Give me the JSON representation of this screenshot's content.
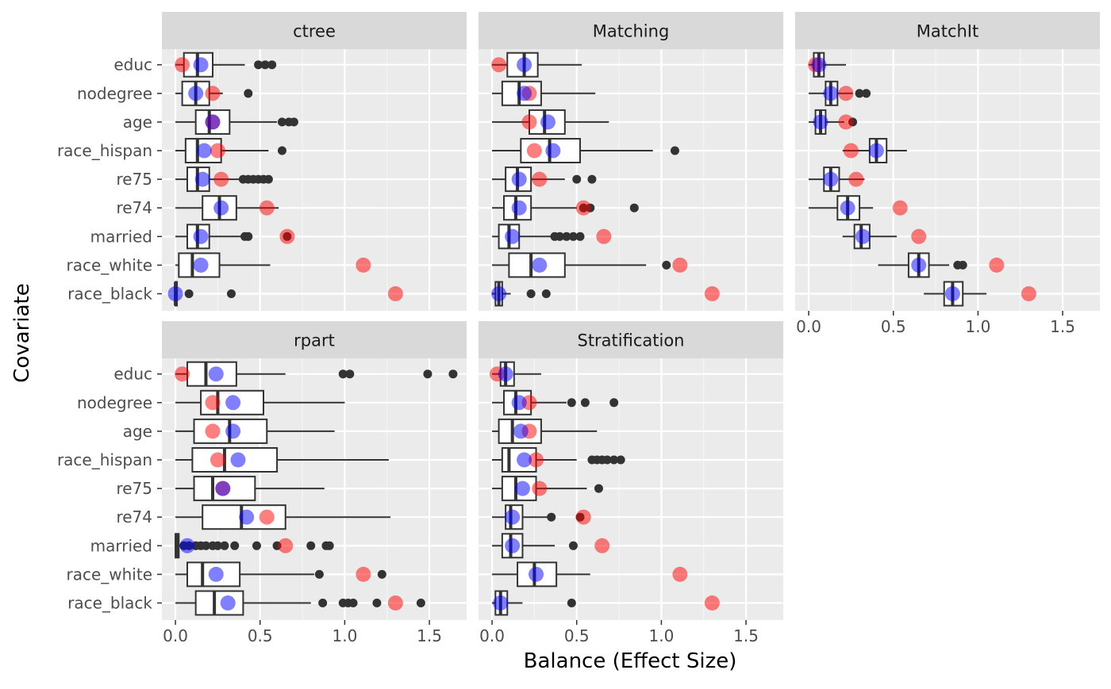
{
  "chart_data": {
    "type": "boxplot",
    "xlabel": "Balance (Effect Size)",
    "ylabel": "Covariate",
    "xlim": [
      -0.08,
      1.72
    ],
    "xticks": [
      0.0,
      0.5,
      1.0,
      1.5
    ],
    "xtick_labels": [
      "0.0",
      "0.5",
      "1.0",
      "1.5"
    ],
    "categories": [
      "educ",
      "nodegree",
      "age",
      "race_hispan",
      "re75",
      "re74",
      "married",
      "race_white",
      "race_black"
    ],
    "unadjusted_color": "#ff0000",
    "adjusted_color": "#0000ff",
    "overlap_color": "#8a1a7a",
    "panels": [
      {
        "title": "ctree",
        "rows": [
          {
            "cov": "educ",
            "q1": 0.05,
            "med": 0.13,
            "q3": 0.22,
            "wlo": 0.0,
            "whi": 0.41,
            "outliers": [
              0.49,
              0.53,
              0.57
            ],
            "unadj": 0.04,
            "adj": 0.15
          },
          {
            "cov": "nodegree",
            "q1": 0.04,
            "med": 0.12,
            "q3": 0.2,
            "wlo": 0.0,
            "whi": 0.28,
            "outliers": [
              0.43
            ],
            "unadj": 0.22,
            "adj": 0.12
          },
          {
            "cov": "age",
            "q1": 0.12,
            "med": 0.2,
            "q3": 0.32,
            "wlo": 0.0,
            "whi": 0.6,
            "outliers": [
              0.63,
              0.67,
              0.7
            ],
            "unadj": 0.22,
            "adj": 0.22
          },
          {
            "cov": "race_hispan",
            "q1": 0.06,
            "med": 0.13,
            "q3": 0.27,
            "wlo": 0.0,
            "whi": 0.55,
            "outliers": [
              0.63
            ],
            "unadj": 0.25,
            "adj": 0.17
          },
          {
            "cov": "re75",
            "q1": 0.07,
            "med": 0.13,
            "q3": 0.2,
            "wlo": 0.0,
            "whi": 0.38,
            "outliers": [
              0.4,
              0.43,
              0.46,
              0.49,
              0.52,
              0.55
            ],
            "unadj": 0.27,
            "adj": 0.16
          },
          {
            "cov": "re74",
            "q1": 0.16,
            "med": 0.26,
            "q3": 0.36,
            "wlo": 0.0,
            "whi": 0.61,
            "outliers": [],
            "unadj": 0.54,
            "adj": 0.27
          },
          {
            "cov": "married",
            "q1": 0.07,
            "med": 0.13,
            "q3": 0.2,
            "wlo": 0.0,
            "whi": 0.4,
            "outliers": [
              0.41,
              0.43,
              0.66
            ],
            "unadj": 0.66,
            "adj": 0.15
          },
          {
            "cov": "race_white",
            "q1": 0.02,
            "med": 0.1,
            "q3": 0.26,
            "wlo": 0.0,
            "whi": 0.56,
            "outliers": [],
            "unadj": 1.11,
            "adj": 0.15
          },
          {
            "cov": "race_black",
            "q1": 0.0,
            "med": 0.0,
            "q3": 0.0,
            "wlo": 0.0,
            "whi": 0.0,
            "outliers": [
              0.08,
              0.33
            ],
            "unadj": 1.3,
            "adj": 0.0
          }
        ]
      },
      {
        "title": "Matching",
        "rows": [
          {
            "cov": "educ",
            "q1": 0.09,
            "med": 0.19,
            "q3": 0.27,
            "wlo": 0.0,
            "whi": 0.53,
            "outliers": [],
            "unadj": 0.04,
            "adj": 0.19
          },
          {
            "cov": "nodegree",
            "q1": 0.06,
            "med": 0.16,
            "q3": 0.29,
            "wlo": 0.0,
            "whi": 0.61,
            "outliers": [],
            "unadj": 0.22,
            "adj": 0.19
          },
          {
            "cov": "age",
            "q1": 0.22,
            "med": 0.31,
            "q3": 0.43,
            "wlo": 0.0,
            "whi": 0.69,
            "outliers": [],
            "unadj": 0.22,
            "adj": 0.33
          },
          {
            "cov": "race_hispan",
            "q1": 0.17,
            "med": 0.34,
            "q3": 0.52,
            "wlo": 0.0,
            "whi": 0.95,
            "outliers": [
              1.08
            ],
            "unadj": 0.25,
            "adj": 0.36
          },
          {
            "cov": "re75",
            "q1": 0.08,
            "med": 0.15,
            "q3": 0.23,
            "wlo": 0.0,
            "whi": 0.43,
            "outliers": [
              0.5,
              0.59
            ],
            "unadj": 0.28,
            "adj": 0.16
          },
          {
            "cov": "re74",
            "q1": 0.07,
            "med": 0.14,
            "q3": 0.23,
            "wlo": 0.0,
            "whi": 0.5,
            "outliers": [
              0.54,
              0.58,
              0.84
            ],
            "unadj": 0.54,
            "adj": 0.16
          },
          {
            "cov": "married",
            "q1": 0.04,
            "med": 0.1,
            "q3": 0.16,
            "wlo": 0.0,
            "whi": 0.36,
            "outliers": [
              0.37,
              0.4,
              0.44,
              0.48,
              0.52
            ],
            "unadj": 0.66,
            "adj": 0.12
          },
          {
            "cov": "race_white",
            "q1": 0.1,
            "med": 0.23,
            "q3": 0.43,
            "wlo": 0.0,
            "whi": 0.91,
            "outliers": [
              1.03
            ],
            "unadj": 1.11,
            "adj": 0.28
          },
          {
            "cov": "race_black",
            "q1": 0.02,
            "med": 0.04,
            "q3": 0.06,
            "wlo": 0.0,
            "whi": 0.11,
            "outliers": [
              0.23,
              0.32
            ],
            "unadj": 1.3,
            "adj": 0.04
          }
        ]
      },
      {
        "title": "MatchIt",
        "rows": [
          {
            "cov": "educ",
            "q1": 0.03,
            "med": 0.06,
            "q3": 0.09,
            "wlo": 0.0,
            "whi": 0.22,
            "outliers": [],
            "unadj": 0.04,
            "adj": 0.06
          },
          {
            "cov": "nodegree",
            "q1": 0.1,
            "med": 0.13,
            "q3": 0.17,
            "wlo": 0.0,
            "whi": 0.26,
            "outliers": [
              0.3,
              0.34
            ],
            "unadj": 0.22,
            "adj": 0.13
          },
          {
            "cov": "age",
            "q1": 0.04,
            "med": 0.07,
            "q3": 0.1,
            "wlo": 0.0,
            "whi": 0.21,
            "outliers": [
              0.26
            ],
            "unadj": 0.22,
            "adj": 0.07
          },
          {
            "cov": "race_hispan",
            "q1": 0.36,
            "med": 0.4,
            "q3": 0.46,
            "wlo": 0.2,
            "whi": 0.58,
            "outliers": [],
            "unadj": 0.25,
            "adj": 0.4
          },
          {
            "cov": "re75",
            "q1": 0.09,
            "med": 0.13,
            "q3": 0.18,
            "wlo": 0.0,
            "whi": 0.33,
            "outliers": [],
            "unadj": 0.28,
            "adj": 0.13
          },
          {
            "cov": "re74",
            "q1": 0.17,
            "med": 0.23,
            "q3": 0.3,
            "wlo": 0.0,
            "whi": 0.38,
            "outliers": [],
            "unadj": 0.54,
            "adj": 0.23
          },
          {
            "cov": "married",
            "q1": 0.27,
            "med": 0.31,
            "q3": 0.36,
            "wlo": 0.2,
            "whi": 0.52,
            "outliers": [],
            "unadj": 0.65,
            "adj": 0.32
          },
          {
            "cov": "race_white",
            "q1": 0.59,
            "med": 0.65,
            "q3": 0.71,
            "wlo": 0.41,
            "whi": 0.83,
            "outliers": [
              0.88,
              0.91
            ],
            "unadj": 1.11,
            "adj": 0.65
          },
          {
            "cov": "race_black",
            "q1": 0.8,
            "med": 0.85,
            "q3": 0.91,
            "wlo": 0.68,
            "whi": 1.05,
            "outliers": [],
            "unadj": 1.3,
            "adj": 0.85
          }
        ]
      },
      {
        "title": "rpart",
        "rows": [
          {
            "cov": "educ",
            "q1": 0.07,
            "med": 0.18,
            "q3": 0.36,
            "wlo": 0.0,
            "whi": 0.65,
            "outliers": [
              0.99,
              1.03,
              1.49,
              1.64
            ],
            "unadj": 0.04,
            "adj": 0.24
          },
          {
            "cov": "nodegree",
            "q1": 0.15,
            "med": 0.25,
            "q3": 0.52,
            "wlo": 0.0,
            "whi": 1.0,
            "outliers": [],
            "unadj": 0.22,
            "adj": 0.34
          },
          {
            "cov": "age",
            "q1": 0.11,
            "med": 0.32,
            "q3": 0.54,
            "wlo": 0.0,
            "whi": 0.94,
            "outliers": [],
            "unadj": 0.22,
            "adj": 0.34
          },
          {
            "cov": "race_hispan",
            "q1": 0.1,
            "med": 0.29,
            "q3": 0.6,
            "wlo": 0.0,
            "whi": 1.26,
            "outliers": [],
            "unadj": 0.25,
            "adj": 0.37
          },
          {
            "cov": "re75",
            "q1": 0.11,
            "med": 0.22,
            "q3": 0.47,
            "wlo": 0.0,
            "whi": 0.88,
            "outliers": [],
            "unadj": 0.28,
            "adj": 0.28
          },
          {
            "cov": "re74",
            "q1": 0.16,
            "med": 0.39,
            "q3": 0.65,
            "wlo": 0.0,
            "whi": 1.27,
            "outliers": [],
            "unadj": 0.54,
            "adj": 0.42
          },
          {
            "cov": "married",
            "q1": 0.0,
            "med": 0.01,
            "q3": 0.02,
            "wlo": 0.0,
            "whi": 0.03,
            "outliers": [
              0.05,
              0.08,
              0.12,
              0.15,
              0.18,
              0.22,
              0.25,
              0.29,
              0.35,
              0.48,
              0.6,
              0.8,
              0.89,
              0.91
            ],
            "unadj": 0.65,
            "adj": 0.07
          },
          {
            "cov": "race_white",
            "q1": 0.07,
            "med": 0.16,
            "q3": 0.38,
            "wlo": 0.0,
            "whi": 0.82,
            "outliers": [
              0.85,
              1.22
            ],
            "unadj": 1.11,
            "adj": 0.24
          },
          {
            "cov": "race_black",
            "q1": 0.12,
            "med": 0.23,
            "q3": 0.4,
            "wlo": 0.0,
            "whi": 0.8,
            "outliers": [
              0.87,
              0.99,
              1.02,
              1.05,
              1.19,
              1.45
            ],
            "unadj": 1.3,
            "adj": 0.31
          }
        ]
      },
      {
        "title": "Stratification",
        "rows": [
          {
            "cov": "educ",
            "q1": 0.05,
            "med": 0.08,
            "q3": 0.13,
            "wlo": 0.0,
            "whi": 0.29,
            "outliers": [],
            "unadj": 0.03,
            "adj": 0.08
          },
          {
            "cov": "nodegree",
            "q1": 0.07,
            "med": 0.14,
            "q3": 0.23,
            "wlo": 0.0,
            "whi": 0.44,
            "outliers": [
              0.47,
              0.55,
              0.72
            ],
            "unadj": 0.22,
            "adj": 0.16
          },
          {
            "cov": "age",
            "q1": 0.04,
            "med": 0.12,
            "q3": 0.29,
            "wlo": 0.0,
            "whi": 0.62,
            "outliers": [],
            "unadj": 0.22,
            "adj": 0.17
          },
          {
            "cov": "race_hispan",
            "q1": 0.06,
            "med": 0.1,
            "q3": 0.26,
            "wlo": 0.0,
            "whi": 0.5,
            "outliers": [
              0.59,
              0.62,
              0.65,
              0.68,
              0.72,
              0.76
            ],
            "unadj": 0.26,
            "adj": 0.19
          },
          {
            "cov": "re75",
            "q1": 0.06,
            "med": 0.14,
            "q3": 0.26,
            "wlo": 0.0,
            "whi": 0.56,
            "outliers": [
              0.63
            ],
            "unadj": 0.28,
            "adj": 0.18
          },
          {
            "cov": "re74",
            "q1": 0.08,
            "med": 0.11,
            "q3": 0.18,
            "wlo": 0.0,
            "whi": 0.33,
            "outliers": [
              0.35,
              0.52
            ],
            "unadj": 0.54,
            "adj": 0.12
          },
          {
            "cov": "married",
            "q1": 0.06,
            "med": 0.11,
            "q3": 0.18,
            "wlo": 0.0,
            "whi": 0.37,
            "outliers": [
              0.48
            ],
            "unadj": 0.65,
            "adj": 0.12
          },
          {
            "cov": "race_white",
            "q1": 0.15,
            "med": 0.25,
            "q3": 0.38,
            "wlo": 0.0,
            "whi": 0.58,
            "outliers": [],
            "unadj": 1.11,
            "adj": 0.26
          },
          {
            "cov": "race_black",
            "q1": 0.02,
            "med": 0.05,
            "q3": 0.09,
            "wlo": 0.0,
            "whi": 0.18,
            "outliers": [
              0.47
            ],
            "unadj": 1.3,
            "adj": 0.05
          }
        ]
      }
    ]
  }
}
